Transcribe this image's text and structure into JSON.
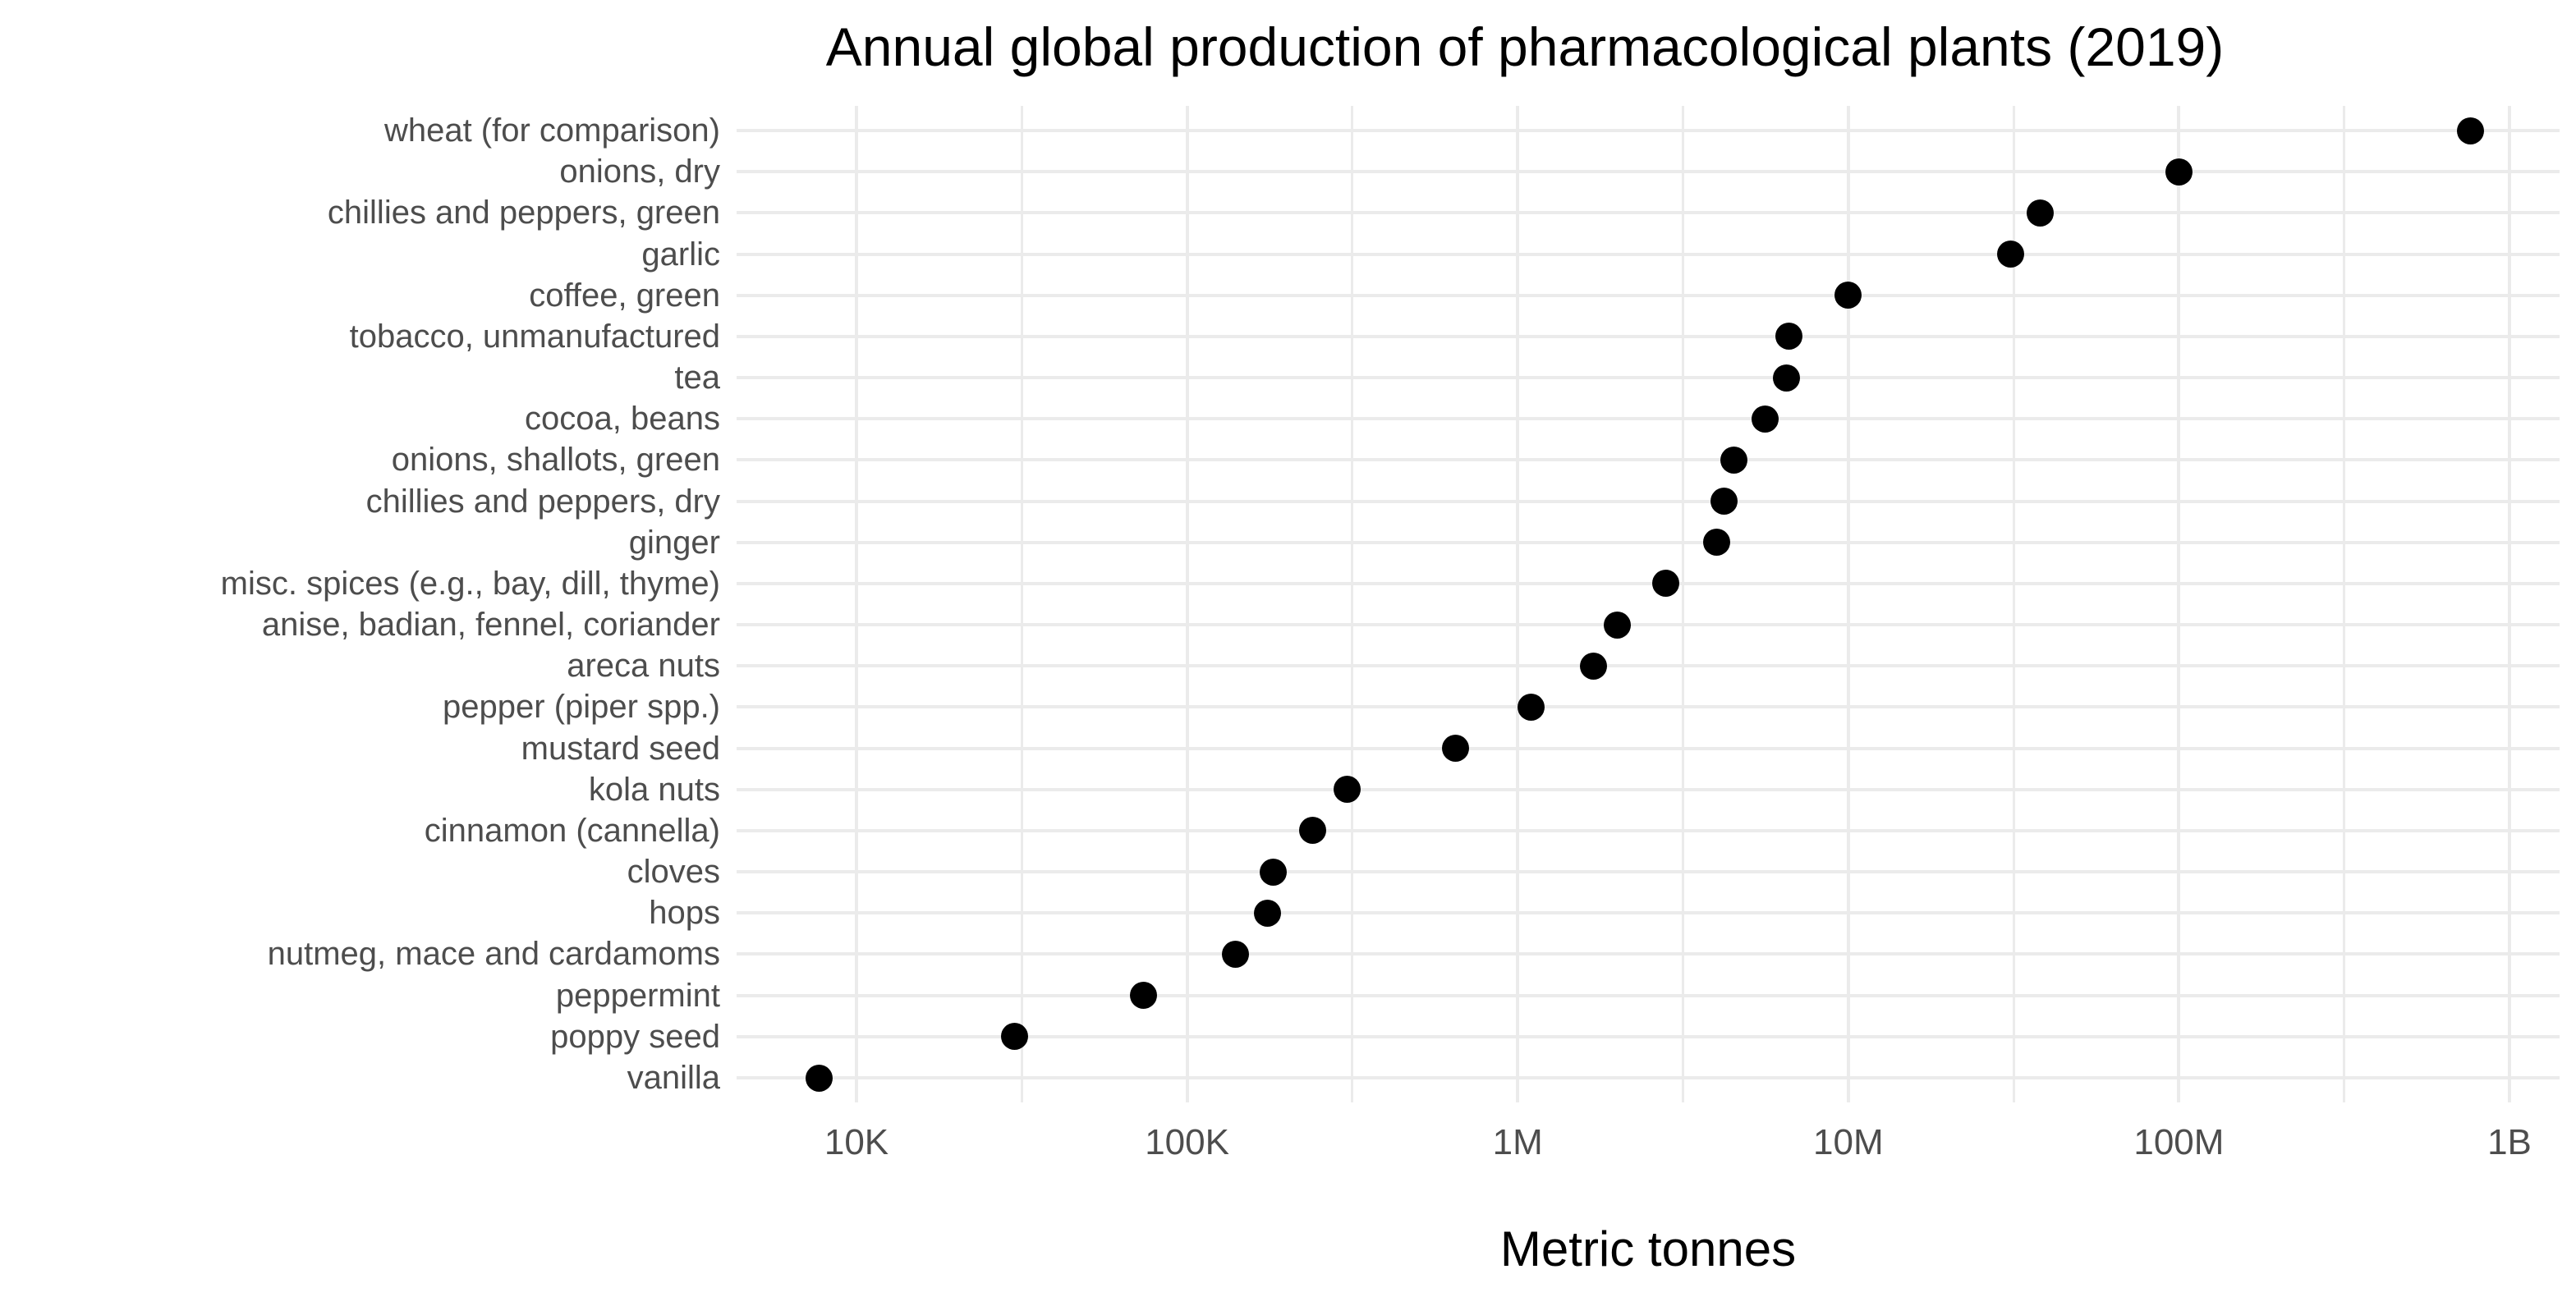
{
  "title": "Annual global production of pharmacological plants (2019)",
  "colors": {
    "background": "#ffffff",
    "gridline": "#ebebeb",
    "point": "#000000",
    "axis_text": "#4d4d4d",
    "title_text": "#000000"
  },
  "chart_data": {
    "type": "scatter",
    "subtype": "cleveland-dot-plot",
    "orientation": "horizontal",
    "title": "Annual global production of pharmacological plants (2019)",
    "xlabel": "Metric tonnes",
    "ylabel": "",
    "x_scale": "log10",
    "x_axis_ticks": [
      {
        "label": "10K",
        "value": 10000
      },
      {
        "label": "100K",
        "value": 100000
      },
      {
        "label": "1M",
        "value": 1000000
      },
      {
        "label": "10M",
        "value": 10000000
      },
      {
        "label": "100M",
        "value": 100000000
      },
      {
        "label": "1B",
        "value": 1000000000
      }
    ],
    "xlim": [
      4300,
      1420000000
    ],
    "grid": true,
    "legend": false,
    "categories": [
      "wheat (for comparison)",
      "onions, dry",
      "chillies and peppers, green",
      "garlic",
      "coffee, green",
      "tobacco, unmanufactured",
      "tea",
      "cocoa, beans",
      "onions, shallots, green",
      "chillies and peppers, dry",
      "ginger",
      "misc. spices (e.g., bay, dill, thyme)",
      "anise, badian, fennel, coriander",
      "areca nuts",
      "pepper (piper spp.)",
      "mustard seed",
      "kola nuts",
      "cinnamon (cannella)",
      "cloves",
      "hops",
      "nutmeg, mace and cardamoms",
      "peppermint",
      "poppy seed",
      "vanilla"
    ],
    "values": [
      760000000,
      100000000,
      38000000,
      31000000,
      10000000,
      6600000,
      6500000,
      5600000,
      4500000,
      4200000,
      4000000,
      2800000,
      2000000,
      1700000,
      1100000,
      650000,
      305000,
      240000,
      182000,
      175000,
      140000,
      74000,
      30000,
      7700
    ]
  }
}
